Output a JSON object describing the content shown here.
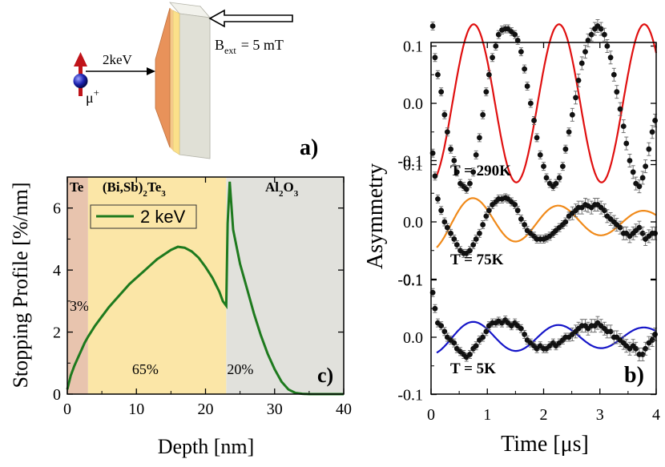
{
  "schematic": {
    "energy_label": "2keV",
    "field_label": "B",
    "field_sub": "ext",
    "field_value": "= 5 mT",
    "muon_label": "μ",
    "muon_sup": "+",
    "panel_label": "a)"
  },
  "chart_data": [
    {
      "type": "line",
      "panel_label": "c)",
      "xlabel": "Depth [nm]",
      "ylabel": "Stopping Profile [%/nm]",
      "xlim": [
        0,
        40
      ],
      "ylim": [
        0,
        7
      ],
      "xticks": [
        0,
        10,
        20,
        30,
        40
      ],
      "yticks": [
        0,
        2,
        4,
        6
      ],
      "regions": [
        {
          "name": "Te",
          "name_html": "Te",
          "from": 0,
          "to": 3,
          "color": "#e8c4ae",
          "fraction": "3%"
        },
        {
          "name": "(Bi,Sb)2Te3",
          "name_html": "(Bi,Sb)<tspan baseline-shift='sub' font-size='11'>2</tspan>Te<tspan baseline-shift='sub' font-size='11'>3</tspan>",
          "from": 3,
          "to": 23,
          "color": "#fbe6a7",
          "fraction": "65%"
        },
        {
          "name": "Al2O3",
          "name_html": "Al<tspan baseline-shift='sub' font-size='11'>2</tspan>O<tspan baseline-shift='sub' font-size='11'>3</tspan>",
          "from": 23,
          "to": 40,
          "color": "#e1e1dc",
          "fraction": "20%"
        }
      ],
      "series": [
        {
          "name": "2 keV",
          "color": "#1e7a1e",
          "x": [
            0,
            0.5,
            1,
            1.5,
            2,
            2.5,
            3,
            4,
            5,
            6,
            7,
            8,
            9,
            10,
            11,
            12,
            13,
            14,
            15,
            16,
            17,
            18,
            19,
            20,
            21,
            22,
            22.5,
            23,
            23.2,
            23.5,
            24,
            25,
            26,
            27,
            28,
            29,
            30,
            31,
            32,
            33,
            34,
            35,
            37,
            40
          ],
          "y": [
            0.15,
            0.6,
            0.9,
            1.15,
            1.4,
            1.65,
            1.85,
            2.2,
            2.5,
            2.8,
            3.05,
            3.3,
            3.55,
            3.75,
            3.95,
            4.15,
            4.35,
            4.5,
            4.65,
            4.75,
            4.72,
            4.6,
            4.4,
            4.1,
            3.75,
            3.3,
            3.0,
            2.85,
            5.5,
            6.85,
            5.3,
            4.2,
            3.4,
            2.6,
            1.9,
            1.3,
            0.8,
            0.4,
            0.15,
            0.04,
            0.01,
            0,
            0,
            0
          ]
        }
      ]
    },
    {
      "type": "scatter+line",
      "panel_label": "b)",
      "xlabel": "Time [μs]",
      "ylabel": "Asymmetry",
      "xlim": [
        0,
        4
      ],
      "xticks": [
        0,
        1,
        2,
        3,
        4
      ],
      "yticks": [
        -0.1,
        0.0,
        0.1
      ],
      "ytick_labels": [
        "-0.1",
        "0.0",
        "0.1"
      ],
      "panels": [
        {
          "label": "T = 290K",
          "fit_color": "#e01010",
          "amplitude": 0.138,
          "frequency": 0.66,
          "phase": 0.0,
          "decay": 0.0,
          "fit_start": 0.1,
          "points_t": [
            0.03,
            0.07,
            0.12,
            0.18,
            0.24,
            0.29,
            0.35,
            0.41,
            0.46,
            0.52,
            0.58,
            0.63,
            0.69,
            0.75,
            0.8,
            0.86,
            0.92,
            0.98,
            1.03,
            1.09,
            1.15,
            1.2,
            1.26,
            1.32,
            1.37,
            1.43,
            1.49,
            1.54,
            1.6,
            1.66,
            1.71,
            1.77,
            1.83,
            1.88,
            1.94,
            2,
            2.05,
            2.11,
            2.17,
            2.22,
            2.28,
            2.34,
            2.39,
            2.45,
            2.51,
            2.57,
            2.62,
            2.68,
            2.74,
            2.79,
            2.85,
            2.91,
            2.96,
            3.02,
            3.08,
            3.13,
            3.19,
            3.25,
            3.3,
            3.36,
            3.42,
            3.47,
            3.53,
            3.59,
            3.64,
            3.7,
            3.76,
            3.81,
            3.87,
            3.93,
            3.98
          ],
          "points_y": [
            0.135,
            0.08,
            0.05,
            0.02,
            -0.02,
            -0.05,
            -0.08,
            -0.1,
            -0.12,
            -0.14,
            -0.145,
            -0.15,
            -0.14,
            -0.12,
            -0.09,
            -0.06,
            -0.02,
            0.02,
            0.05,
            0.08,
            0.1,
            0.12,
            0.128,
            0.13,
            0.13,
            0.125,
            0.12,
            0.11,
            0.09,
            0.06,
            0.03,
            0.0,
            -0.03,
            -0.06,
            -0.09,
            -0.11,
            -0.13,
            -0.14,
            -0.145,
            -0.14,
            -0.13,
            -0.11,
            -0.08,
            -0.05,
            -0.02,
            0.01,
            0.04,
            0.07,
            0.09,
            0.11,
            0.12,
            0.13,
            0.135,
            0.13,
            0.12,
            0.1,
            0.08,
            0.05,
            0.02,
            -0.01,
            -0.04,
            -0.07,
            -0.1,
            -0.12,
            -0.14,
            -0.145,
            -0.13,
            -0.11,
            -0.08,
            -0.05,
            -0.03
          ]
        },
        {
          "label": "T = 75K",
          "fit_color": "#f08a1a",
          "amplitude": 0.05,
          "frequency": 0.66,
          "phase": 0.0,
          "decay": 0.25,
          "fit_start": 0.1,
          "points_t": [
            0.03,
            0.07,
            0.12,
            0.18,
            0.24,
            0.29,
            0.35,
            0.41,
            0.46,
            0.52,
            0.58,
            0.63,
            0.69,
            0.75,
            0.8,
            0.86,
            0.92,
            0.98,
            1.03,
            1.09,
            1.15,
            1.2,
            1.26,
            1.32,
            1.37,
            1.43,
            1.49,
            1.54,
            1.6,
            1.66,
            1.71,
            1.77,
            1.83,
            1.88,
            1.94,
            2,
            2.05,
            2.11,
            2.17,
            2.22,
            2.28,
            2.34,
            2.39,
            2.45,
            2.51,
            2.57,
            2.62,
            2.68,
            2.74,
            2.79,
            2.85,
            2.91,
            2.96,
            3.02,
            3.08,
            3.13,
            3.19,
            3.25,
            3.3,
            3.36,
            3.42,
            3.47,
            3.53,
            3.59,
            3.64,
            3.7,
            3.76,
            3.81,
            3.87,
            3.93,
            3.98
          ],
          "points_y": [
            0.12,
            0.08,
            0.04,
            0.02,
            0.0,
            -0.01,
            -0.02,
            -0.03,
            -0.04,
            -0.05,
            -0.055,
            -0.055,
            -0.05,
            -0.04,
            -0.03,
            -0.02,
            -0.005,
            0.01,
            0.02,
            0.03,
            0.035,
            0.04,
            0.04,
            0.042,
            0.04,
            0.035,
            0.03,
            0.02,
            0.005,
            -0.005,
            -0.015,
            -0.02,
            -0.025,
            -0.03,
            -0.03,
            -0.03,
            -0.028,
            -0.025,
            -0.02,
            -0.015,
            -0.01,
            -0.005,
            0.0,
            0.01,
            0.015,
            0.02,
            0.025,
            0.025,
            0.03,
            0.028,
            0.025,
            0.03,
            0.03,
            0.025,
            0.02,
            0.01,
            0.005,
            0.0,
            -0.005,
            -0.01,
            -0.02,
            -0.02,
            -0.025,
            -0.02,
            -0.015,
            -0.01,
            -0.02,
            -0.03,
            -0.025,
            -0.02,
            -0.02
          ]
        },
        {
          "label": "T = 5K",
          "fit_color": "#1515c8",
          "amplitude": 0.03,
          "frequency": 0.66,
          "phase": 0.0,
          "decay": 0.15,
          "fit_start": 0.1,
          "points_t": [
            0.03,
            0.07,
            0.12,
            0.18,
            0.24,
            0.29,
            0.35,
            0.41,
            0.46,
            0.52,
            0.58,
            0.63,
            0.69,
            0.75,
            0.8,
            0.86,
            0.92,
            0.98,
            1.03,
            1.09,
            1.15,
            1.2,
            1.26,
            1.32,
            1.37,
            1.43,
            1.49,
            1.54,
            1.6,
            1.66,
            1.71,
            1.77,
            1.83,
            1.88,
            1.94,
            2,
            2.05,
            2.11,
            2.17,
            2.22,
            2.28,
            2.34,
            2.39,
            2.45,
            2.51,
            2.57,
            2.62,
            2.68,
            2.74,
            2.79,
            2.85,
            2.91,
            2.96,
            3.02,
            3.08,
            3.13,
            3.19,
            3.25,
            3.3,
            3.36,
            3.42,
            3.47,
            3.53,
            3.59,
            3.64,
            3.7,
            3.76,
            3.81,
            3.87,
            3.93,
            3.98
          ],
          "points_y": [
            0.078,
            0.05,
            0.025,
            0.02,
            0.01,
            0.0,
            -0.005,
            -0.01,
            -0.02,
            -0.025,
            -0.03,
            -0.035,
            -0.03,
            -0.02,
            -0.015,
            -0.005,
            0.0,
            0.01,
            0.02,
            0.025,
            0.025,
            0.028,
            0.025,
            0.03,
            0.025,
            0.02,
            0.025,
            0.02,
            0.015,
            0.005,
            -0.005,
            -0.01,
            -0.015,
            -0.02,
            -0.015,
            -0.02,
            -0.02,
            -0.015,
            -0.01,
            -0.015,
            -0.01,
            -0.005,
            0.0,
            0.0,
            0.005,
            0.01,
            0.015,
            0.02,
            0.02,
            0.015,
            0.02,
            0.02,
            0.025,
            0.02,
            0.015,
            0.01,
            0.01,
            0.0,
            0.0,
            -0.005,
            -0.01,
            -0.015,
            -0.02,
            -0.015,
            -0.02,
            -0.03,
            -0.03,
            -0.02,
            -0.01,
            -0.005,
            0.005
          ]
        }
      ]
    }
  ]
}
